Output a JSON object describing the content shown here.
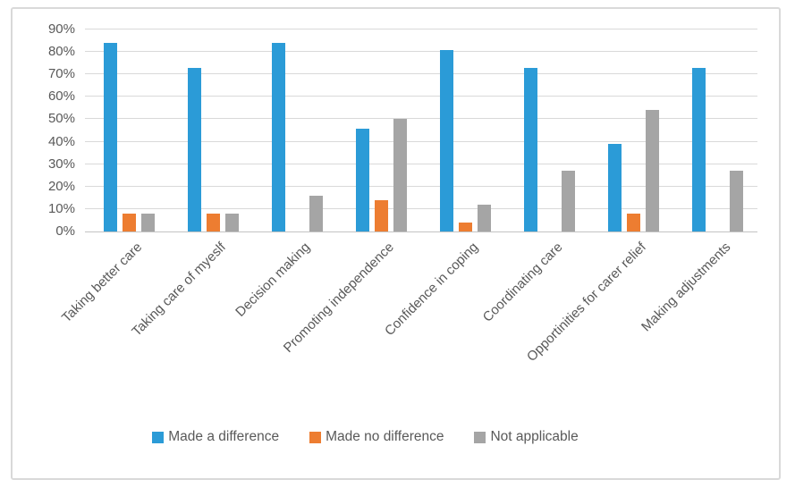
{
  "chart_data": {
    "type": "bar",
    "categories": [
      "Taking better care",
      "Taking care of myeslf",
      "Decision making",
      "Promoting independence",
      "Confidence in coping",
      "Coordinating care",
      "Opportinities for carer relief",
      "Making adjustments"
    ],
    "series": [
      {
        "name": "Made a difference",
        "color": "#2B9BD7",
        "values": [
          84,
          73,
          84,
          46,
          81,
          73,
          39,
          73
        ]
      },
      {
        "name": "Made no difference",
        "color": "#ED7D31",
        "values": [
          8,
          8,
          0,
          14,
          4,
          0,
          8,
          0
        ]
      },
      {
        "name": "Not applicable",
        "color": "#A5A5A5",
        "values": [
          8,
          8,
          16,
          50,
          12,
          27,
          54,
          27
        ]
      }
    ],
    "y_ticks": [
      "0%",
      "10%",
      "20%",
      "30%",
      "40%",
      "50%",
      "60%",
      "70%",
      "80%",
      "90%"
    ],
    "ylim": [
      0,
      90
    ],
    "unit": "%",
    "grid": true,
    "legend_position": "bottom"
  }
}
